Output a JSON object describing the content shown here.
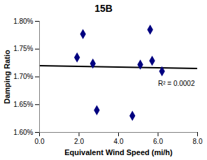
{
  "chart_data": {
    "type": "scatter",
    "title": "15B",
    "x_label": "Equivalent Wind Speed (mi/h)",
    "y_label": "Damping Ratio",
    "x": [
      1.9,
      2.2,
      2.7,
      2.9,
      4.7,
      5.1,
      5.6,
      5.7,
      6.2
    ],
    "values": [
      1.735,
      1.777,
      1.724,
      1.64,
      1.63,
      1.722,
      1.785,
      1.729,
      1.71
    ],
    "color": "#000080",
    "marker": "diamond",
    "trendline": {
      "x": [
        0,
        8
      ],
      "values": [
        1.72,
        1.715
      ],
      "color": "#000000"
    },
    "annotation": "R² = 0.0002",
    "xlim": [
      0,
      8
    ],
    "xticks": [
      {
        "value": 0,
        "label": "0.0"
      },
      {
        "value": 2,
        "label": "2.0"
      },
      {
        "value": 4,
        "label": "4.0"
      },
      {
        "value": 6,
        "label": "6.0"
      },
      {
        "value": 8,
        "label": "8.0"
      }
    ],
    "ylim": [
      1.6,
      1.8
    ],
    "yticks": [
      {
        "value": 1.6,
        "label": "1.60%"
      },
      {
        "value": 1.65,
        "label": "1.65%"
      },
      {
        "value": 1.7,
        "label": "1.70%"
      },
      {
        "value": 1.75,
        "label": "1.75%"
      },
      {
        "value": 1.8,
        "label": "1.80%"
      }
    ],
    "grid": false
  }
}
